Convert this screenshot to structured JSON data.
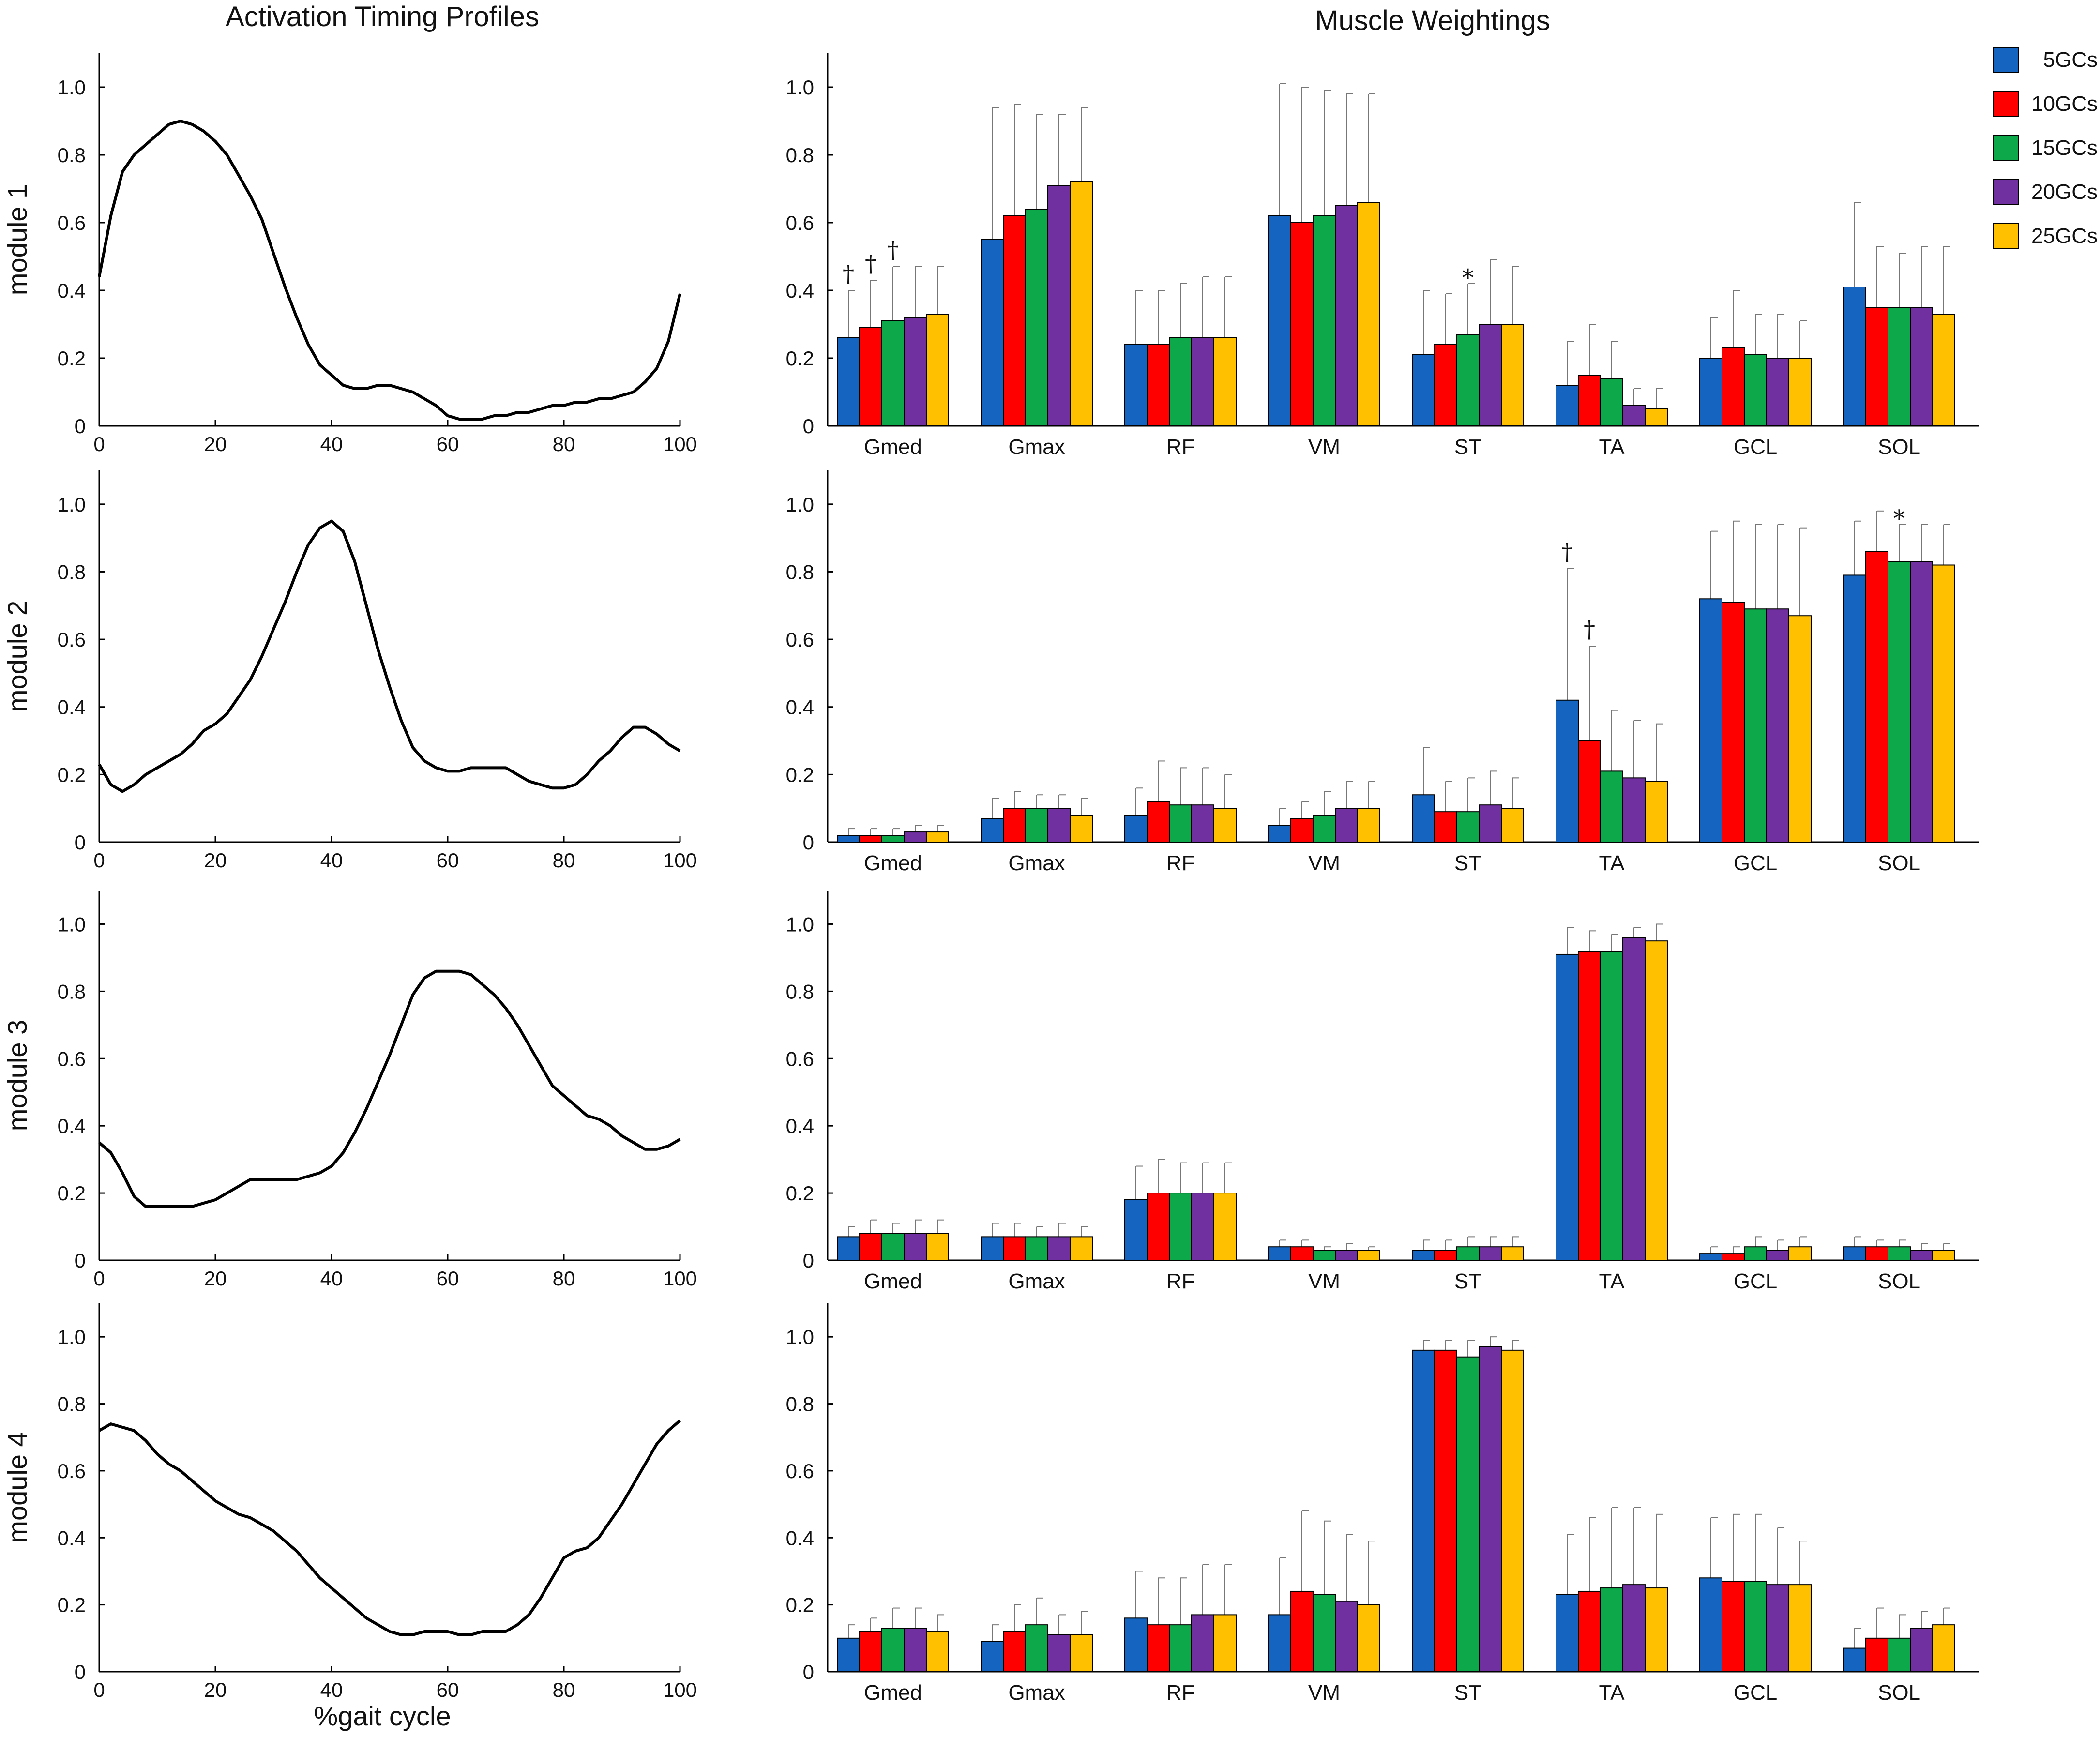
{
  "titles": {
    "left": "Activation Timing Profiles",
    "right": "Muscle Weightings"
  },
  "x_axis_label": "%gait cycle",
  "colors": {
    "5GCs": "#1565C0",
    "10GCs": "#FF0000",
    "15GCs": "#0DA84A",
    "20GCs": "#7030A0",
    "25GCs": "#FFC000",
    "line": "#000000"
  },
  "legend": [
    "5GCs",
    "10GCs",
    "15GCs",
    "20GCs",
    "25GCs"
  ],
  "chart_data": [
    {
      "type": "line",
      "title": "Activation Timing Profiles",
      "ylabel": "module 1",
      "xlabel": "",
      "xlim": [
        0,
        100
      ],
      "ylim": [
        0,
        1.1
      ],
      "xticks": [
        "0",
        "20",
        "40",
        "60",
        "80",
        "100"
      ],
      "yticks": [
        "0",
        "0.2",
        "0.4",
        "0.6",
        "0.8",
        "1.0"
      ],
      "x": [
        0,
        2,
        4,
        6,
        8,
        10,
        12,
        14,
        16,
        18,
        20,
        22,
        24,
        26,
        28,
        30,
        32,
        34,
        36,
        38,
        40,
        42,
        44,
        46,
        48,
        50,
        52,
        54,
        56,
        58,
        60,
        62,
        64,
        66,
        68,
        70,
        72,
        74,
        76,
        78,
        80,
        82,
        84,
        86,
        88,
        90,
        92,
        94,
        96,
        98,
        100
      ],
      "y": [
        0.44,
        0.62,
        0.75,
        0.8,
        0.83,
        0.86,
        0.89,
        0.9,
        0.89,
        0.87,
        0.84,
        0.8,
        0.74,
        0.68,
        0.61,
        0.51,
        0.41,
        0.32,
        0.24,
        0.18,
        0.15,
        0.12,
        0.11,
        0.11,
        0.12,
        0.12,
        0.11,
        0.1,
        0.08,
        0.06,
        0.03,
        0.02,
        0.02,
        0.02,
        0.03,
        0.03,
        0.04,
        0.04,
        0.05,
        0.06,
        0.06,
        0.07,
        0.07,
        0.08,
        0.08,
        0.09,
        0.1,
        0.13,
        0.17,
        0.25,
        0.39
      ]
    },
    {
      "type": "line",
      "ylabel": "module 2",
      "xlabel": "",
      "xlim": [
        0,
        100
      ],
      "ylim": [
        0,
        1.1
      ],
      "xticks": [
        "0",
        "20",
        "40",
        "60",
        "80",
        "100"
      ],
      "yticks": [
        "0",
        "0.2",
        "0.4",
        "0.6",
        "0.8",
        "1.0"
      ],
      "x": [
        0,
        2,
        4,
        6,
        8,
        10,
        12,
        14,
        16,
        18,
        20,
        22,
        24,
        26,
        28,
        30,
        32,
        34,
        36,
        38,
        40,
        42,
        44,
        46,
        48,
        50,
        52,
        54,
        56,
        58,
        60,
        62,
        64,
        66,
        68,
        70,
        72,
        74,
        76,
        78,
        80,
        82,
        84,
        86,
        88,
        90,
        92,
        94,
        96,
        98,
        100
      ],
      "y": [
        0.23,
        0.17,
        0.15,
        0.17,
        0.2,
        0.22,
        0.24,
        0.26,
        0.29,
        0.33,
        0.35,
        0.38,
        0.43,
        0.48,
        0.55,
        0.63,
        0.71,
        0.8,
        0.88,
        0.93,
        0.95,
        0.92,
        0.83,
        0.7,
        0.57,
        0.46,
        0.36,
        0.28,
        0.24,
        0.22,
        0.21,
        0.21,
        0.22,
        0.22,
        0.22,
        0.22,
        0.2,
        0.18,
        0.17,
        0.16,
        0.16,
        0.17,
        0.2,
        0.24,
        0.27,
        0.31,
        0.34,
        0.34,
        0.32,
        0.29,
        0.27
      ]
    },
    {
      "type": "line",
      "ylabel": "module 3",
      "xlabel": "",
      "xlim": [
        0,
        100
      ],
      "ylim": [
        0,
        1.1
      ],
      "xticks": [
        "0",
        "20",
        "40",
        "60",
        "80",
        "100"
      ],
      "yticks": [
        "0",
        "0.2",
        "0.4",
        "0.6",
        "0.8",
        "1.0"
      ],
      "x": [
        0,
        2,
        4,
        6,
        8,
        10,
        12,
        14,
        16,
        18,
        20,
        22,
        24,
        26,
        28,
        30,
        32,
        34,
        36,
        38,
        40,
        42,
        44,
        46,
        48,
        50,
        52,
        54,
        56,
        58,
        60,
        62,
        64,
        66,
        68,
        70,
        72,
        74,
        76,
        78,
        80,
        82,
        84,
        86,
        88,
        90,
        92,
        94,
        96,
        98,
        100
      ],
      "y": [
        0.35,
        0.32,
        0.26,
        0.19,
        0.16,
        0.16,
        0.16,
        0.16,
        0.16,
        0.17,
        0.18,
        0.2,
        0.22,
        0.24,
        0.24,
        0.24,
        0.24,
        0.24,
        0.25,
        0.26,
        0.28,
        0.32,
        0.38,
        0.45,
        0.53,
        0.61,
        0.7,
        0.79,
        0.84,
        0.86,
        0.86,
        0.86,
        0.85,
        0.82,
        0.79,
        0.75,
        0.7,
        0.64,
        0.58,
        0.52,
        0.49,
        0.46,
        0.43,
        0.42,
        0.4,
        0.37,
        0.35,
        0.33,
        0.33,
        0.34,
        0.36
      ]
    },
    {
      "type": "line",
      "ylabel": "module 4",
      "xlabel": "%gait cycle",
      "xlim": [
        0,
        100
      ],
      "ylim": [
        0,
        1.1
      ],
      "xticks": [
        "0",
        "20",
        "40",
        "60",
        "80",
        "100"
      ],
      "yticks": [
        "0",
        "0.2",
        "0.4",
        "0.6",
        "0.8",
        "1.0"
      ],
      "x": [
        0,
        2,
        4,
        6,
        8,
        10,
        12,
        14,
        16,
        18,
        20,
        22,
        24,
        26,
        28,
        30,
        32,
        34,
        36,
        38,
        40,
        42,
        44,
        46,
        48,
        50,
        52,
        54,
        56,
        58,
        60,
        62,
        64,
        66,
        68,
        70,
        72,
        74,
        76,
        78,
        80,
        82,
        84,
        86,
        88,
        90,
        92,
        94,
        96,
        98,
        100
      ],
      "y": [
        0.72,
        0.74,
        0.73,
        0.72,
        0.69,
        0.65,
        0.62,
        0.6,
        0.57,
        0.54,
        0.51,
        0.49,
        0.47,
        0.46,
        0.44,
        0.42,
        0.39,
        0.36,
        0.32,
        0.28,
        0.25,
        0.22,
        0.19,
        0.16,
        0.14,
        0.12,
        0.11,
        0.11,
        0.12,
        0.12,
        0.12,
        0.11,
        0.11,
        0.12,
        0.12,
        0.12,
        0.14,
        0.17,
        0.22,
        0.28,
        0.34,
        0.36,
        0.37,
        0.4,
        0.45,
        0.5,
        0.56,
        0.62,
        0.68,
        0.72,
        0.75
      ]
    },
    {
      "type": "bar",
      "title": "Muscle Weightings",
      "ylabel": "",
      "ylim": [
        0,
        1.1
      ],
      "yticks": [
        "0",
        "0.2",
        "0.4",
        "0.6",
        "0.8",
        "1.0"
      ],
      "categories": [
        "Gmed",
        "Gmax",
        "RF",
        "VM",
        "ST",
        "TA",
        "GCL",
        "SOL"
      ],
      "series": [
        {
          "name": "5GCs",
          "values": [
            0.26,
            0.55,
            0.24,
            0.62,
            0.21,
            0.12,
            0.2,
            0.41
          ],
          "sd": [
            0.14,
            0.39,
            0.16,
            0.39,
            0.19,
            0.13,
            0.12,
            0.25
          ]
        },
        {
          "name": "10GCs",
          "values": [
            0.29,
            0.62,
            0.24,
            0.6,
            0.24,
            0.15,
            0.23,
            0.35
          ],
          "sd": [
            0.14,
            0.33,
            0.16,
            0.4,
            0.15,
            0.15,
            0.17,
            0.18
          ]
        },
        {
          "name": "15GCs",
          "values": [
            0.31,
            0.64,
            0.26,
            0.62,
            0.27,
            0.14,
            0.21,
            0.35
          ],
          "sd": [
            0.16,
            0.28,
            0.16,
            0.37,
            0.15,
            0.11,
            0.12,
            0.16
          ]
        },
        {
          "name": "20GCs",
          "values": [
            0.32,
            0.71,
            0.26,
            0.65,
            0.3,
            0.06,
            0.2,
            0.35
          ],
          "sd": [
            0.15,
            0.21,
            0.18,
            0.33,
            0.19,
            0.05,
            0.13,
            0.18
          ]
        },
        {
          "name": "25GCs",
          "values": [
            0.33,
            0.72,
            0.26,
            0.66,
            0.3,
            0.05,
            0.2,
            0.33
          ],
          "sd": [
            0.14,
            0.22,
            0.18,
            0.32,
            0.17,
            0.06,
            0.11,
            0.2
          ]
        }
      ],
      "annotations": [
        {
          "text": "†",
          "category": "Gmed",
          "series": "5GCs"
        },
        {
          "text": "†",
          "category": "Gmed",
          "series": "10GCs"
        },
        {
          "text": "†",
          "category": "Gmed",
          "series": "15GCs"
        },
        {
          "text": "*",
          "category": "ST",
          "series": "15GCs"
        }
      ]
    },
    {
      "type": "bar",
      "ylabel": "",
      "ylim": [
        0,
        1.1
      ],
      "yticks": [
        "0",
        "0.2",
        "0.4",
        "0.6",
        "0.8",
        "1.0"
      ],
      "categories": [
        "Gmed",
        "Gmax",
        "RF",
        "VM",
        "ST",
        "TA",
        "GCL",
        "SOL"
      ],
      "series": [
        {
          "name": "5GCs",
          "values": [
            0.02,
            0.07,
            0.08,
            0.05,
            0.14,
            0.42,
            0.72,
            0.79
          ],
          "sd": [
            0.02,
            0.06,
            0.08,
            0.05,
            0.14,
            0.39,
            0.2,
            0.16
          ]
        },
        {
          "name": "10GCs",
          "values": [
            0.02,
            0.1,
            0.12,
            0.07,
            0.09,
            0.3,
            0.71,
            0.86
          ],
          "sd": [
            0.02,
            0.05,
            0.12,
            0.05,
            0.09,
            0.28,
            0.24,
            0.12
          ]
        },
        {
          "name": "15GCs",
          "values": [
            0.02,
            0.1,
            0.11,
            0.08,
            0.09,
            0.21,
            0.69,
            0.83
          ],
          "sd": [
            0.02,
            0.04,
            0.11,
            0.07,
            0.1,
            0.18,
            0.25,
            0.11
          ]
        },
        {
          "name": "20GCs",
          "values": [
            0.03,
            0.1,
            0.11,
            0.1,
            0.11,
            0.19,
            0.69,
            0.83
          ],
          "sd": [
            0.02,
            0.04,
            0.11,
            0.08,
            0.1,
            0.17,
            0.25,
            0.11
          ]
        },
        {
          "name": "25GCs",
          "values": [
            0.03,
            0.08,
            0.1,
            0.1,
            0.1,
            0.18,
            0.67,
            0.82
          ],
          "sd": [
            0.02,
            0.05,
            0.1,
            0.08,
            0.09,
            0.17,
            0.26,
            0.12
          ]
        }
      ],
      "annotations": [
        {
          "text": "†",
          "category": "TA",
          "series": "5GCs"
        },
        {
          "text": "†",
          "category": "TA",
          "series": "10GCs"
        },
        {
          "text": "*",
          "category": "SOL",
          "series": "15GCs"
        }
      ]
    },
    {
      "type": "bar",
      "ylabel": "",
      "ylim": [
        0,
        1.1
      ],
      "yticks": [
        "0",
        "0.2",
        "0.4",
        "0.6",
        "0.8",
        "1.0"
      ],
      "categories": [
        "Gmed",
        "Gmax",
        "RF",
        "VM",
        "ST",
        "TA",
        "GCL",
        "SOL"
      ],
      "series": [
        {
          "name": "5GCs",
          "values": [
            0.07,
            0.07,
            0.18,
            0.04,
            0.03,
            0.91,
            0.02,
            0.04
          ],
          "sd": [
            0.03,
            0.04,
            0.1,
            0.02,
            0.03,
            0.08,
            0.02,
            0.03
          ]
        },
        {
          "name": "10GCs",
          "values": [
            0.08,
            0.07,
            0.2,
            0.04,
            0.03,
            0.92,
            0.02,
            0.04
          ],
          "sd": [
            0.04,
            0.04,
            0.1,
            0.02,
            0.03,
            0.06,
            0.02,
            0.02
          ]
        },
        {
          "name": "15GCs",
          "values": [
            0.08,
            0.07,
            0.2,
            0.03,
            0.04,
            0.92,
            0.04,
            0.04
          ],
          "sd": [
            0.03,
            0.03,
            0.09,
            0.01,
            0.03,
            0.05,
            0.03,
            0.02
          ]
        },
        {
          "name": "20GCs",
          "values": [
            0.08,
            0.07,
            0.2,
            0.03,
            0.04,
            0.96,
            0.03,
            0.03
          ],
          "sd": [
            0.04,
            0.04,
            0.09,
            0.02,
            0.03,
            0.03,
            0.03,
            0.02
          ]
        },
        {
          "name": "25GCs",
          "values": [
            0.08,
            0.07,
            0.2,
            0.03,
            0.04,
            0.95,
            0.04,
            0.03
          ],
          "sd": [
            0.04,
            0.03,
            0.09,
            0.01,
            0.03,
            0.05,
            0.03,
            0.02
          ]
        }
      ],
      "annotations": []
    },
    {
      "type": "bar",
      "ylabel": "",
      "ylim": [
        0,
        1.1
      ],
      "yticks": [
        "0",
        "0.2",
        "0.4",
        "0.6",
        "0.8",
        "1.0"
      ],
      "categories": [
        "Gmed",
        "Gmax",
        "RF",
        "VM",
        "ST",
        "TA",
        "GCL",
        "SOL"
      ],
      "series": [
        {
          "name": "5GCs",
          "values": [
            0.1,
            0.09,
            0.16,
            0.17,
            0.96,
            0.23,
            0.28,
            0.07
          ],
          "sd": [
            0.04,
            0.05,
            0.14,
            0.17,
            0.03,
            0.18,
            0.18,
            0.06
          ]
        },
        {
          "name": "10GCs",
          "values": [
            0.12,
            0.12,
            0.14,
            0.24,
            0.96,
            0.24,
            0.27,
            0.1
          ],
          "sd": [
            0.04,
            0.08,
            0.14,
            0.24,
            0.03,
            0.22,
            0.2,
            0.09
          ]
        },
        {
          "name": "15GCs",
          "values": [
            0.13,
            0.14,
            0.14,
            0.23,
            0.94,
            0.25,
            0.27,
            0.1
          ],
          "sd": [
            0.06,
            0.08,
            0.14,
            0.22,
            0.05,
            0.24,
            0.2,
            0.07
          ]
        },
        {
          "name": "20GCs",
          "values": [
            0.13,
            0.11,
            0.17,
            0.21,
            0.97,
            0.26,
            0.26,
            0.13
          ],
          "sd": [
            0.06,
            0.06,
            0.15,
            0.2,
            0.03,
            0.23,
            0.17,
            0.05
          ]
        },
        {
          "name": "25GCs",
          "values": [
            0.12,
            0.11,
            0.17,
            0.2,
            0.96,
            0.25,
            0.26,
            0.14
          ],
          "sd": [
            0.05,
            0.07,
            0.15,
            0.19,
            0.03,
            0.22,
            0.13,
            0.05
          ]
        }
      ],
      "annotations": []
    }
  ]
}
